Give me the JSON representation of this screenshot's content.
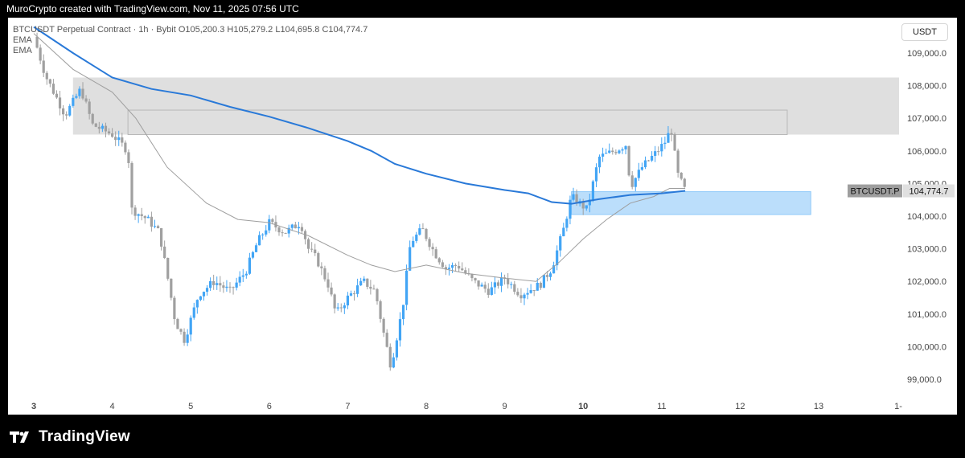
{
  "header": {
    "caption": "MuroCrypto created with TradingView.com, Nov 11, 2025 07:56 UTC"
  },
  "legend": {
    "symbol": "BTCUSDT Perpetual Contract · 1h · Bybit",
    "open": "O105,200.3",
    "high": "H105,279.2",
    "low": "L104,695.8",
    "close": "C104,774.7",
    "indicators": [
      "EMA",
      "EMA"
    ]
  },
  "axis": {
    "unit": "USDT",
    "price_ticks": [
      "109,000.0",
      "108,000.0",
      "107,000.0",
      "106,000.0",
      "105,000.0",
      "104,000.0",
      "103,000.0",
      "102,000.0",
      "101,000.0",
      "100,000.0",
      "99,000.0"
    ],
    "date_ticks": [
      "3",
      "4",
      "5",
      "6",
      "7",
      "8",
      "9",
      "10",
      "11",
      "12",
      "13",
      "1-"
    ]
  },
  "price_label": {
    "symbol": "BTCUSDT.P",
    "value": "104,774.7"
  },
  "footer": {
    "brand": "TradingView"
  },
  "colors": {
    "up": "#42a5f5",
    "down": "#a0a0a0",
    "ema_slow": "#2979d8",
    "ema_fast": "#9e9e9e",
    "zone_gray": "#d9d9d9",
    "zone_blue": "#bbdefb"
  },
  "chart_data": {
    "type": "candlestick",
    "y_range": [
      98700,
      109800
    ],
    "x_range": [
      2.97,
      14.05
    ],
    "zones": [
      {
        "name": "",
        "x_from": 3.5,
        "x_to": 14.05,
        "low": 106500,
        "high": 108250,
        "color": "gray"
      },
      {
        "name": "",
        "x_from": 4.2,
        "x_to": 12.6,
        "low": 106500,
        "high": 107250,
        "color": "gray-outline"
      },
      {
        "name": "",
        "x_from": 9.85,
        "x_to": 12.9,
        "low": 104050,
        "high": 104750,
        "color": "blue"
      }
    ],
    "ema_slow": [
      [
        3.0,
        109800
      ],
      [
        3.5,
        109000
      ],
      [
        4.0,
        108250
      ],
      [
        4.5,
        107900
      ],
      [
        5.0,
        107700
      ],
      [
        5.5,
        107350
      ],
      [
        6.0,
        107050
      ],
      [
        6.5,
        106700
      ],
      [
        7.0,
        106300
      ],
      [
        7.3,
        106000
      ],
      [
        7.6,
        105600
      ],
      [
        8.0,
        105300
      ],
      [
        8.5,
        105000
      ],
      [
        9.0,
        104800
      ],
      [
        9.3,
        104700
      ],
      [
        9.6,
        104430
      ],
      [
        9.85,
        104380
      ],
      [
        10.2,
        104520
      ],
      [
        10.6,
        104650
      ],
      [
        11.0,
        104700
      ],
      [
        11.3,
        104774.7
      ]
    ],
    "ema_fast": [
      [
        3.0,
        109600
      ],
      [
        3.5,
        108500
      ],
      [
        4.0,
        107800
      ],
      [
        4.3,
        107000
      ],
      [
        4.7,
        105500
      ],
      [
        5.2,
        104400
      ],
      [
        5.6,
        103900
      ],
      [
        6.0,
        103800
      ],
      [
        6.5,
        103400
      ],
      [
        7.0,
        102800
      ],
      [
        7.3,
        102500
      ],
      [
        7.6,
        102300
      ],
      [
        8.0,
        102500
      ],
      [
        8.5,
        102250
      ],
      [
        9.0,
        102100
      ],
      [
        9.4,
        102000
      ],
      [
        9.7,
        102600
      ],
      [
        10.0,
        103300
      ],
      [
        10.3,
        103900
      ],
      [
        10.6,
        104400
      ],
      [
        10.9,
        104600
      ],
      [
        11.1,
        104850
      ],
      [
        11.3,
        104850
      ]
    ],
    "waypoints": [
      [
        3.0,
        109500
      ],
      [
        3.15,
        108300
      ],
      [
        3.4,
        107100
      ],
      [
        3.6,
        107900
      ],
      [
        3.75,
        106800
      ],
      [
        4.0,
        106500
      ],
      [
        4.2,
        106000
      ],
      [
        4.25,
        104200
      ],
      [
        4.45,
        103900
      ],
      [
        4.6,
        103500
      ],
      [
        4.7,
        102200
      ],
      [
        4.8,
        100800
      ],
      [
        4.92,
        100200
      ],
      [
        5.1,
        101600
      ],
      [
        5.3,
        102000
      ],
      [
        5.5,
        101700
      ],
      [
        5.7,
        102300
      ],
      [
        5.85,
        103200
      ],
      [
        6.0,
        103800
      ],
      [
        6.2,
        103500
      ],
      [
        6.4,
        103800
      ],
      [
        6.5,
        103000
      ],
      [
        6.6,
        102700
      ],
      [
        6.75,
        101900
      ],
      [
        6.85,
        101000
      ],
      [
        7.0,
        101500
      ],
      [
        7.2,
        102000
      ],
      [
        7.35,
        101700
      ],
      [
        7.45,
        100500
      ],
      [
        7.55,
        99400
      ],
      [
        7.7,
        101200
      ],
      [
        7.8,
        103200
      ],
      [
        7.95,
        103600
      ],
      [
        8.1,
        102900
      ],
      [
        8.25,
        102400
      ],
      [
        8.4,
        102500
      ],
      [
        8.6,
        102000
      ],
      [
        8.8,
        101700
      ],
      [
        9.0,
        102100
      ],
      [
        9.2,
        101600
      ],
      [
        9.45,
        101900
      ],
      [
        9.6,
        102400
      ],
      [
        9.75,
        103600
      ],
      [
        9.85,
        104600
      ],
      [
        10.05,
        104200
      ],
      [
        10.2,
        105800
      ],
      [
        10.4,
        106000
      ],
      [
        10.55,
        106200
      ],
      [
        10.6,
        104900
      ],
      [
        10.75,
        105500
      ],
      [
        10.95,
        106000
      ],
      [
        11.05,
        106300
      ],
      [
        11.12,
        106700
      ],
      [
        11.2,
        105300
      ],
      [
        11.3,
        104774.7
      ]
    ]
  }
}
